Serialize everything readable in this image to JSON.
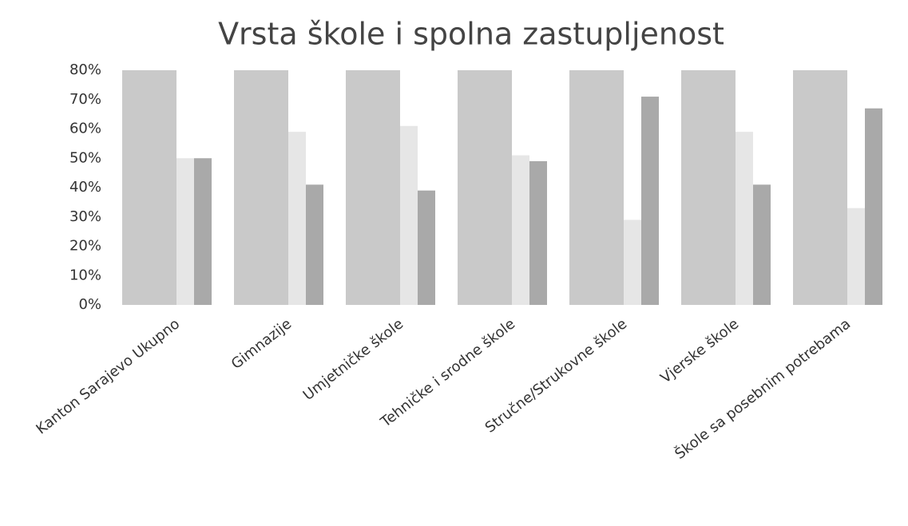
{
  "chart_data": {
    "type": "bar",
    "title": "Vrsta škole i spolna zastupljenost",
    "categories": [
      "Kanton Sarajevo Ukupno",
      "Gimnazije",
      "Umjetničke škole",
      "Tehničke i srodne škole",
      "Stručne/Strukovne škole",
      "Vjerske škole",
      "Škole sa posebnim potrebama"
    ],
    "series": [
      {
        "color": "#c9c9c9",
        "values": [
          80,
          80,
          80,
          80,
          80,
          80,
          80
        ]
      },
      {
        "color": "#e6e6e6",
        "values": [
          50,
          59,
          61,
          51,
          29,
          59,
          33
        ]
      },
      {
        "color": "#a9a9a9",
        "values": [
          50,
          41,
          39,
          49,
          71,
          41,
          67
        ]
      }
    ],
    "ylim": [
      0,
      80
    ],
    "yticks": [
      {
        "value": 0,
        "label": "0%"
      },
      {
        "value": 10,
        "label": "10%"
      },
      {
        "value": 20,
        "label": "20%"
      },
      {
        "value": 30,
        "label": "30%"
      },
      {
        "value": 40,
        "label": "40%"
      },
      {
        "value": 50,
        "label": "50%"
      },
      {
        "value": 60,
        "label": "60%"
      },
      {
        "value": 70,
        "label": "70%"
      },
      {
        "value": 80,
        "label": "80%"
      }
    ],
    "grid": false
  }
}
